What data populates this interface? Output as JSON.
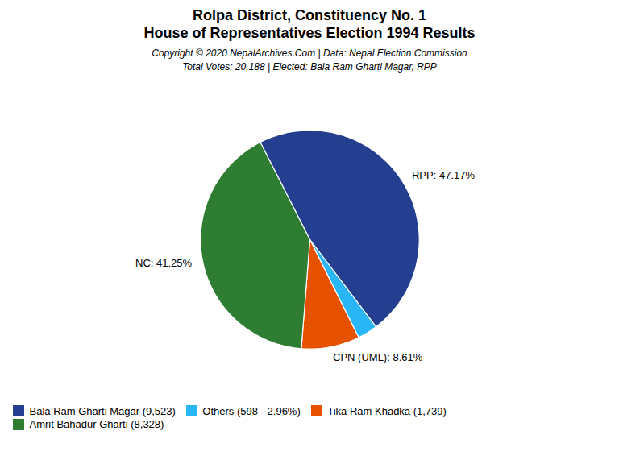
{
  "chart_data": {
    "type": "pie",
    "title": [
      "Rolpa District, Constituency No. 1",
      "House of Representatives Election 1994 Results"
    ],
    "subtitle": [
      "Copyright © 2020 NepalArchives.Com | Data: Nepal Election Commission",
      "Total Votes: 20,188 | Elected: Bala Ram Gharti Magar, RPP"
    ],
    "categories": [
      "Bala Ram Gharti Magar (9,523)",
      "Others (598 - 2.96%)",
      "Tika Ram Khadka (1,739)",
      "Amrit Bahadur Gharti (8,328)"
    ],
    "values": [
      47.17,
      2.96,
      8.61,
      41.25
    ],
    "value_labels": [
      "RPP: 47.17%",
      null,
      "CPN (UML): 8.61%",
      "NC: 41.25%"
    ],
    "colors": [
      "#243F8F",
      "#29B6F6",
      "#E65100",
      "#2E7D32"
    ],
    "data_labels": true,
    "legend": "bottom"
  }
}
